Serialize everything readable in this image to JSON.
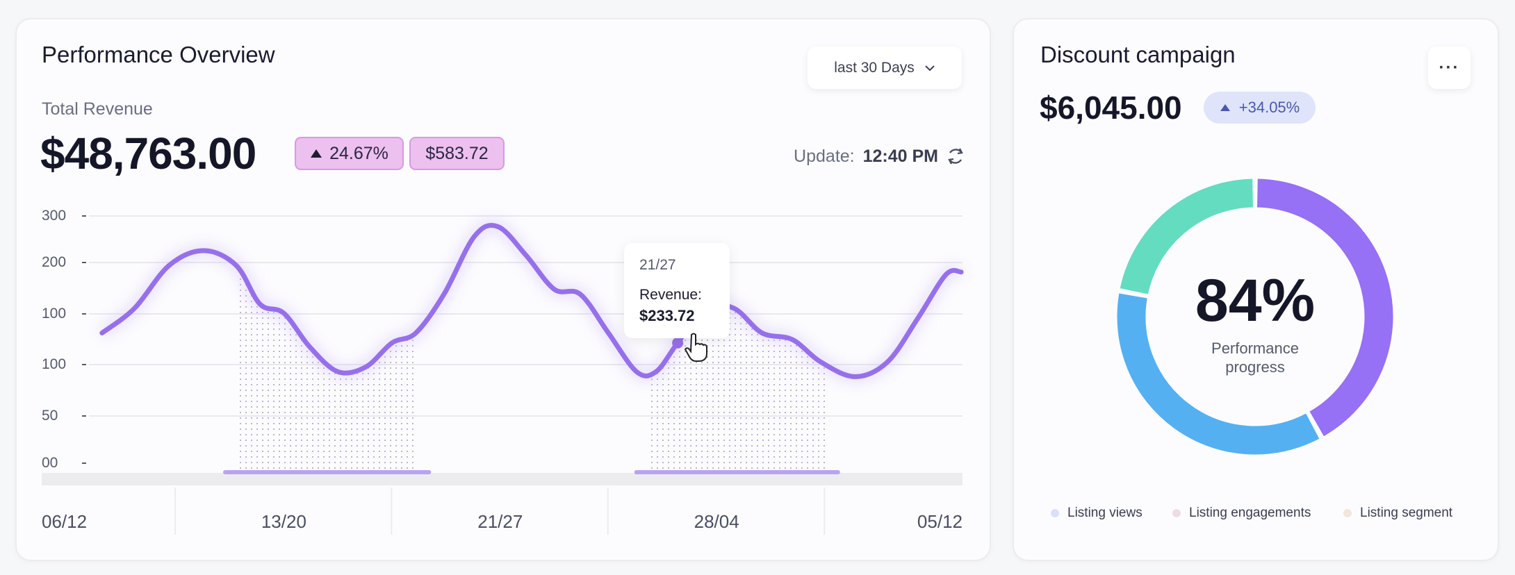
{
  "performance": {
    "title": "Performance Overview",
    "range_selector": "last 30 Days",
    "total_label": "Total Revenue",
    "total_value": "$48,763.00",
    "change_percent": "24.67%",
    "change_amount": "$583.72",
    "update_label": "Update:",
    "update_time": "12:40 PM",
    "tooltip": {
      "date": "21/27",
      "label": "Revenue:",
      "value": "$233.72"
    }
  },
  "campaign": {
    "title": "Discount campaign",
    "value": "$6,045.00",
    "change": "+34.05%",
    "center_value": "84%",
    "center_label_1": "Performance",
    "center_label_2": "progress",
    "legend": [
      {
        "label": "Listing views",
        "color": "#dcdff8"
      },
      {
        "label": "Listing engagements",
        "color": "#eddde3"
      },
      {
        "label": "Listing segment",
        "color": "#efe6dc"
      }
    ]
  },
  "chart_data": [
    {
      "type": "line",
      "ytick_labels": [
        "300",
        "200",
        "100",
        "100",
        "50",
        "00"
      ],
      "ylim": [
        0,
        300
      ],
      "categories": [
        "06/12",
        "13/20",
        "21/27",
        "28/04",
        "05/12"
      ],
      "grid": true,
      "line_color": "#9670ea",
      "points": [
        [
          0.16,
          158
        ],
        [
          0.31,
          188
        ],
        [
          0.47,
          240
        ],
        [
          0.63,
          258
        ],
        [
          0.78,
          240
        ],
        [
          0.89,
          193
        ],
        [
          1.0,
          182
        ],
        [
          1.12,
          141
        ],
        [
          1.25,
          111
        ],
        [
          1.38,
          117
        ],
        [
          1.5,
          146
        ],
        [
          1.61,
          158
        ],
        [
          1.74,
          205
        ],
        [
          1.88,
          275
        ],
        [
          1.99,
          287
        ],
        [
          2.12,
          252
        ],
        [
          2.25,
          211
        ],
        [
          2.37,
          205
        ],
        [
          2.5,
          158
        ],
        [
          2.63,
          111
        ],
        [
          2.72,
          111
        ],
        [
          2.82,
          146
        ],
        [
          2.95,
          188
        ],
        [
          3.08,
          188
        ],
        [
          3.21,
          158
        ],
        [
          3.35,
          150
        ],
        [
          3.48,
          123
        ],
        [
          3.64,
          105
        ],
        [
          3.79,
          123
        ],
        [
          3.93,
          176
        ],
        [
          4.06,
          229
        ],
        [
          4.13,
          232
        ]
      ],
      "highlighted_ranges": [
        [
          0.79,
          1.61
        ],
        [
          2.69,
          3.5
        ]
      ],
      "hover_point": [
        2.82,
        146
      ]
    },
    {
      "type": "pie",
      "donut": true,
      "slices": [
        {
          "value": 42,
          "color": "#9670f5"
        },
        {
          "value": 36,
          "color": "#55b0f2"
        },
        {
          "value": 22,
          "color": "#63dcc0"
        }
      ]
    }
  ]
}
